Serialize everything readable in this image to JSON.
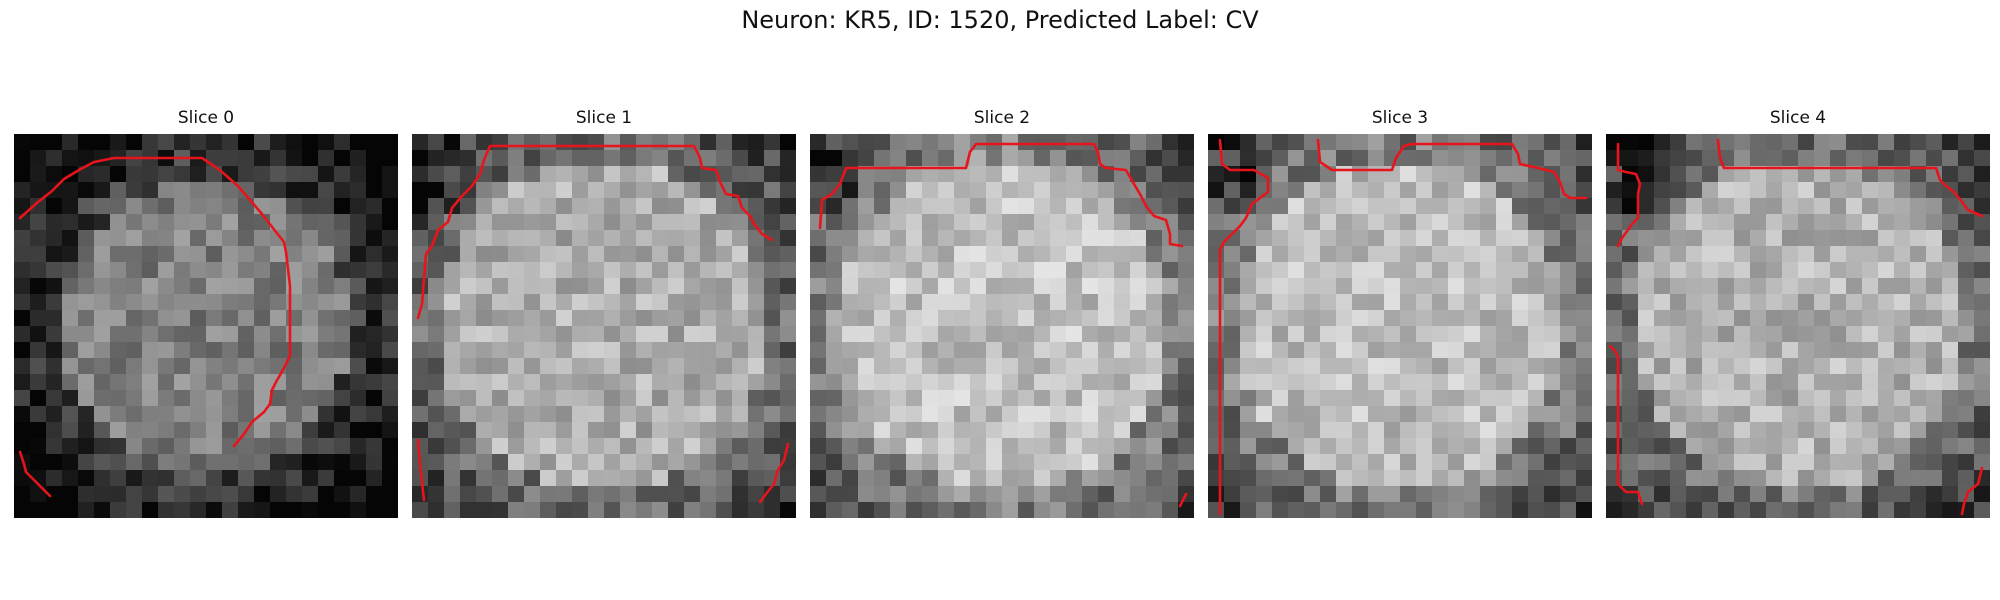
{
  "figure": {
    "title": "Neuron: KR5, ID: 1520, Predicted Label: CV"
  },
  "panels": [
    {
      "title": "Slice 0",
      "brightness": 0.5,
      "contour_color": "#e8141b"
    },
    {
      "title": "Slice 1",
      "brightness": 0.68,
      "contour_color": "#e8141b"
    },
    {
      "title": "Slice 2",
      "brightness": 0.76,
      "contour_color": "#e8141b"
    },
    {
      "title": "Slice 3",
      "brightness": 0.74,
      "contour_color": "#e8141b"
    },
    {
      "title": "Slice 4",
      "brightness": 0.7,
      "contour_color": "#e8141b"
    }
  ]
}
